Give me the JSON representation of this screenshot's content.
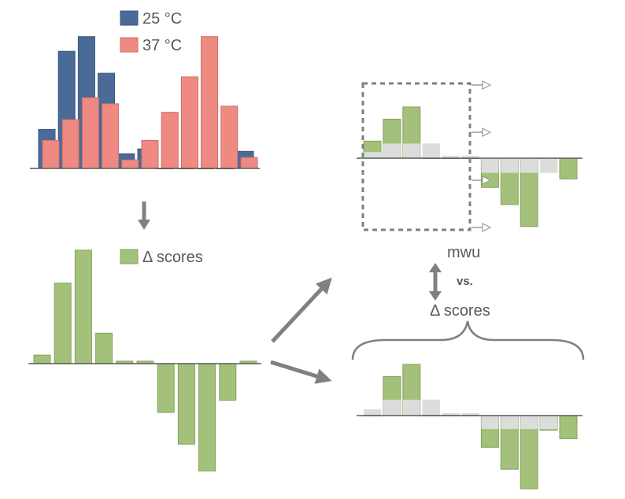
{
  "colors": {
    "blue": "#4a6a97",
    "salmon": "#ee8a82",
    "green": "#a3c17a",
    "grey_bar": "#dcdcdc",
    "axis": "#595959",
    "arrow": "#808080",
    "dashed": "#7f7f7f"
  },
  "histogram": {
    "legend": [
      "25 °C",
      "37 °C"
    ],
    "bins": 11,
    "series_25": [
      32,
      96,
      108,
      78,
      12,
      16,
      0,
      0,
      0,
      0,
      14
    ],
    "series_37": [
      23,
      40,
      58,
      53,
      7,
      23,
      46,
      75,
      108,
      51,
      9
    ]
  },
  "delta": {
    "legend": "Δ scores",
    "values": [
      7,
      66,
      93,
      25,
      2,
      2,
      -40,
      -66,
      -88,
      -30,
      2
    ]
  },
  "mwu_panel": {
    "label": "mwu",
    "values": [
      14,
      32,
      42,
      12,
      2,
      2,
      -24,
      -38,
      -56,
      -12,
      -17
    ],
    "grey_values": [
      5,
      12,
      12,
      12,
      2,
      2,
      -12,
      -12,
      -12,
      -12,
      0
    ]
  },
  "comparison": {
    "vs_label": "vs.",
    "delta_label": "Δ scores"
  },
  "delta_panel": {
    "values": [
      5,
      32,
      42,
      13,
      2,
      2,
      -26,
      -44,
      -60,
      -12,
      -19
    ],
    "grey_values": [
      5,
      13,
      13,
      13,
      2,
      2,
      -11,
      -11,
      -11,
      -11,
      0
    ]
  }
}
